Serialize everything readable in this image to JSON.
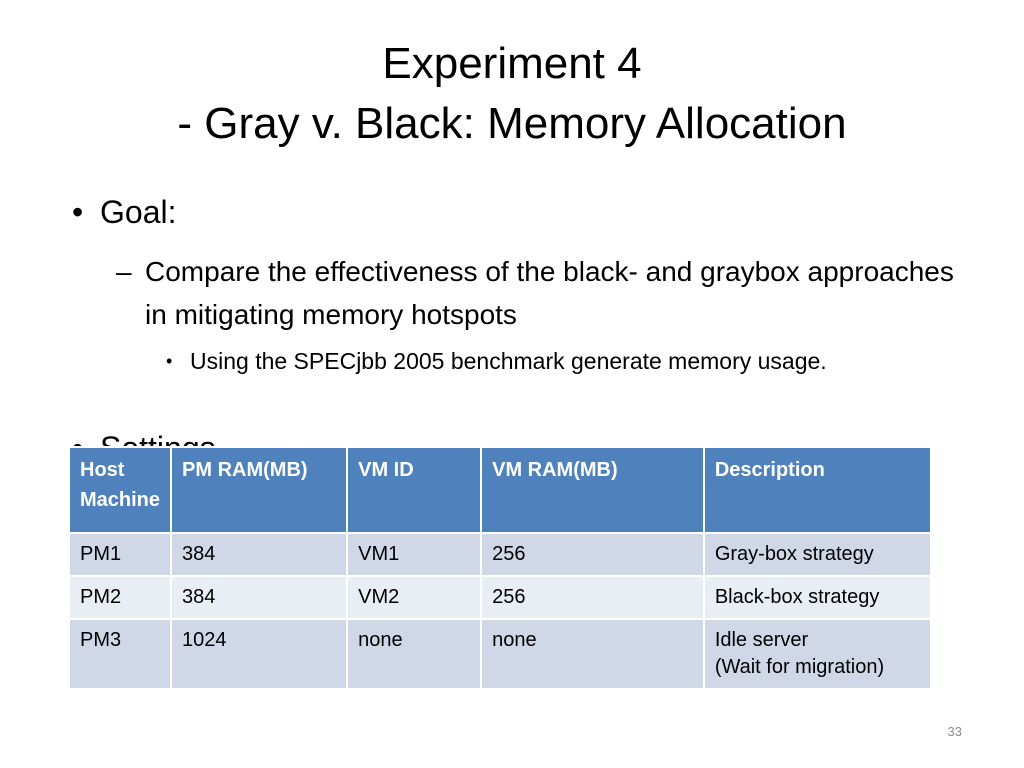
{
  "slide": {
    "title_line1": "Experiment 4",
    "title_line2": "- Gray v. Black: Memory Allocation",
    "bullet_mark": "•",
    "dash_mark": "–",
    "goal": "Goal:",
    "goal_sub": "Compare the effectiveness of the black- and graybox approaches in mitigating memory hotspots",
    "goal_subsub": "Using the SPECjbb 2005 benchmark generate memory usage.",
    "settings": "Settings",
    "page_number": "33"
  },
  "table": {
    "headers": [
      "Host Machine",
      "PM RAM(MB)",
      "VM ID",
      "VM RAM(MB)",
      "Description"
    ],
    "rows": [
      [
        "PM1",
        "384",
        "VM1",
        "256",
        "Gray-box strategy"
      ],
      [
        "PM2",
        "384",
        "VM2",
        "256",
        "Black-box strategy"
      ],
      [
        "PM3",
        "1024",
        "none",
        "none",
        "Idle server\n(Wait for migration)"
      ]
    ]
  },
  "colors": {
    "header_bg": "#4f81bd",
    "row_odd_bg": "#d0d8e8",
    "row_even_bg": "#e9edf4"
  }
}
